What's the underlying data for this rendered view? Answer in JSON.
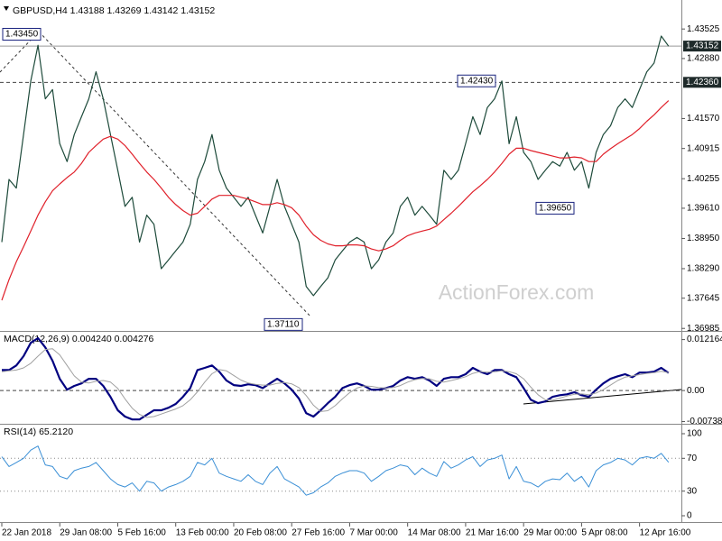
{
  "chart_data": [
    {
      "type": "line",
      "title": "GBPUSD,H4 1.43188 1.43269 1.43142 1.43152",
      "watermark": "ActionForex.com",
      "categories": [
        "22 Jan 2018",
        null,
        null,
        null,
        null,
        null,
        null,
        null,
        "29 Jan 08:00",
        null,
        null,
        null,
        null,
        null,
        null,
        null,
        "5 Feb 16:00",
        null,
        null,
        null,
        null,
        null,
        null,
        null,
        "13 Feb 00:00",
        null,
        null,
        null,
        null,
        null,
        null,
        null,
        "20 Feb 08:00",
        null,
        null,
        null,
        null,
        null,
        null,
        null,
        "27 Feb 16:00",
        null,
        null,
        null,
        null,
        null,
        null,
        null,
        "7 Mar 00:00",
        null,
        null,
        null,
        null,
        null,
        null,
        null,
        "14 Mar 08:00",
        null,
        null,
        null,
        null,
        null,
        null,
        null,
        "21 Mar 16:00",
        null,
        null,
        null,
        null,
        null,
        null,
        null,
        "29 Mar 00:00",
        null,
        null,
        null,
        null,
        null,
        null,
        null,
        "5 Apr 08:00",
        null,
        null,
        null,
        null,
        null,
        null,
        null,
        "12 Apr 16:00",
        null,
        null,
        null,
        null
      ],
      "series": [
        {
          "color": "#1d4a3a",
          "values": [
            1.3887,
            1.4024,
            1.4005,
            1.4122,
            1.4239,
            1.4317,
            1.42,
            1.422,
            1.4102,
            1.4063,
            1.4122,
            1.4161,
            1.42,
            1.4259,
            1.42,
            1.4122,
            1.4044,
            1.3965,
            1.3985,
            1.3887,
            1.3946,
            1.3926,
            1.3829,
            1.3848,
            1.3868,
            1.3887,
            1.3926,
            1.4024,
            1.4063,
            1.4122,
            1.4044,
            1.4005,
            1.3985,
            1.3965,
            1.3985,
            1.3946,
            1.3907,
            1.3965,
            1.4024,
            1.3965,
            1.3926,
            1.3887,
            1.379,
            1.377,
            1.379,
            1.3809,
            1.3848,
            1.3868,
            1.3887,
            1.3897,
            1.3887,
            1.3829,
            1.3848,
            1.3887,
            1.3907,
            1.3965,
            1.3985,
            1.3946,
            1.3965,
            1.3946,
            1.3926,
            1.4044,
            1.4024,
            1.4044,
            1.4102,
            1.4161,
            1.4122,
            1.4181,
            1.42,
            1.4239,
            1.4102,
            1.4161,
            1.4083,
            1.4063,
            1.4024,
            1.4044,
            1.4063,
            1.4053,
            1.4083,
            1.4044,
            1.4063,
            1.4005,
            1.4083,
            1.4122,
            1.4141,
            1.4181,
            1.42,
            1.4181,
            1.422,
            1.4259,
            1.4278,
            1.4337,
            1.4315
          ]
        },
        {
          "color": "#e0202a",
          "values": [
            1.376,
            1.3805,
            1.3844,
            1.3877,
            1.3911,
            1.3946,
            1.3975,
            1.3999,
            1.4014,
            1.4028,
            1.404,
            1.4059,
            1.4083,
            1.4098,
            1.4112,
            1.4118,
            1.4112,
            1.4098,
            1.4079,
            1.4059,
            1.404,
            1.4024,
            1.4005,
            1.3985,
            1.3969,
            1.3956,
            1.3946,
            1.395,
            1.3965,
            1.3981,
            1.3989,
            1.3989,
            1.3989,
            1.3985,
            1.3981,
            1.3975,
            1.3969,
            1.3969,
            1.3973,
            1.3969,
            1.3962,
            1.3946,
            1.3922,
            1.3903,
            1.3891,
            1.3883,
            1.3879,
            1.3879,
            1.3881,
            1.3881,
            1.3879,
            1.3872,
            1.3868,
            1.3872,
            1.3879,
            1.3891,
            1.3901,
            1.3907,
            1.3911,
            1.3915,
            1.3922,
            1.3936,
            1.395,
            1.3965,
            1.3981,
            1.3997,
            1.401,
            1.4024,
            1.404,
            1.4059,
            1.4079,
            1.4092,
            1.4092,
            1.4087,
            1.4083,
            1.4079,
            1.4075,
            1.4071,
            1.4071,
            1.4073,
            1.4071,
            1.4063,
            1.4063,
            1.4079,
            1.4091,
            1.4102,
            1.4112,
            1.4122,
            1.4135,
            1.4151,
            1.4165,
            1.4181,
            1.4196
          ]
        }
      ],
      "ylim": [
        1.3695,
        1.4406
      ],
      "yticks": [
        1.43525,
        {
          "value": 1.4288,
          "label": "1.42880"
        },
        {
          "value": 1.4157,
          "label": "1.41570"
        },
        1.40915,
        1.40255,
        {
          "value": 1.3961,
          "label": "1.39610"
        },
        {
          "value": 1.3895,
          "label": "1.38950"
        },
        {
          "value": 1.3829,
          "label": "1.38290"
        },
        1.37645,
        1.36985
      ],
      "levels": [
        {
          "value": 1.43152,
          "style": "solid",
          "badge": true
        },
        {
          "value": 1.4236,
          "label": "1.42360",
          "style": "dashed",
          "badge": true
        }
      ],
      "annotations": [
        {
          "value": 1.4345,
          "label": "1.43450"
        },
        {
          "value": 1.4243,
          "label": "1.42430"
        },
        {
          "value": 1.3965,
          "label": "1.39650"
        },
        {
          "value": 1.3711,
          "label": "1.37110"
        }
      ]
    },
    {
      "type": "line",
      "title": "MACD(12,26,9) 0.004240 0.004276",
      "series": [
        {
          "color": "#000080",
          "values": [
            0.0049,
            0.0049,
            0.006,
            0.0082,
            0.0114,
            0.0125,
            0.0103,
            0.0071,
            0.0028,
            0.0002,
            0.0011,
            0.0017,
            0.0028,
            0.0028,
            0.0011,
            -0.0015,
            -0.0047,
            -0.0062,
            -0.0069,
            -0.0069,
            -0.0058,
            -0.0047,
            -0.0047,
            -0.0041,
            -0.0032,
            -0.0015,
            0.0006,
            0.0049,
            0.0054,
            0.006,
            0.0045,
            0.0024,
            0.0013,
            0.0011,
            0.0015,
            0.0013,
            0.0006,
            0.0017,
            0.0028,
            0.0017,
            0.0002,
            -0.0019,
            -0.0054,
            -0.0062,
            -0.0047,
            -0.003,
            -0.0015,
            0.0006,
            0.0013,
            0.0017,
            0.0011,
            0.0002,
            0.0002,
            0.0006,
            0.0011,
            0.0024,
            0.0032,
            0.0028,
            0.0032,
            0.0024,
            0.0011,
            0.0028,
            0.0032,
            0.0032,
            0.0039,
            0.0054,
            0.0045,
            0.0039,
            0.0049,
            0.0049,
            0.0039,
            0.0032,
            0.0006,
            -0.0022,
            -0.003,
            -0.0026,
            -0.0015,
            -0.0011,
            -0.0009,
            -0.0004,
            -0.0011,
            -0.0015,
            0.0002,
            0.0017,
            0.0028,
            0.0034,
            0.0039,
            0.0032,
            0.0043,
            0.0043,
            0.0045,
            0.0054,
            0.0042
          ]
        },
        {
          "color": "#a0a0a0",
          "values": [
            0.0045,
            0.0047,
            0.0049,
            0.0054,
            0.0065,
            0.0082,
            0.0098,
            0.01,
            0.0085,
            0.006,
            0.0035,
            0.002,
            0.0018,
            0.0022,
            0.0024,
            0.002,
            0.0005,
            -0.002,
            -0.0042,
            -0.0057,
            -0.0064,
            -0.0062,
            -0.0056,
            -0.005,
            -0.0044,
            -0.0036,
            -0.0022,
            -0.0003,
            0.002,
            0.004,
            0.005,
            0.0047,
            0.0036,
            0.0025,
            0.0018,
            0.0015,
            0.0013,
            0.0013,
            0.0017,
            0.0019,
            0.0016,
            0.0007,
            -0.0012,
            -0.0035,
            -0.005,
            -0.0048,
            -0.0036,
            -0.002,
            -0.0005,
            0.0006,
            0.0011,
            0.001,
            0.0007,
            0.0006,
            0.0007,
            0.0012,
            0.002,
            0.0026,
            0.0029,
            0.0028,
            0.0022,
            0.002,
            0.0024,
            0.0028,
            0.0033,
            0.0041,
            0.0045,
            0.0044,
            0.0045,
            0.0047,
            0.0045,
            0.004,
            0.0028,
            0.0008,
            -0.001,
            -0.0022,
            -0.0023,
            -0.0018,
            -0.0013,
            -0.0009,
            -0.0008,
            -0.001,
            -0.0006,
            0.0002,
            0.0013,
            0.0024,
            0.0032,
            0.0035,
            0.0038,
            0.0041,
            0.0043,
            0.0046,
            0.0043
          ]
        }
      ],
      "ylim": [
        -0.0075,
        0.0138
      ],
      "yticks": [
        0.012164,
        {
          "value": 0,
          "label": "0.00"
        },
        -0.007384
      ],
      "levels": [
        {
          "value": 0,
          "style": "dashed"
        }
      ]
    },
    {
      "type": "line",
      "title": "RSI(14) 65.2120",
      "series": [
        {
          "color": "#3a8fd6",
          "values": [
            72,
            60,
            65,
            70,
            80,
            85,
            62,
            60,
            48,
            45,
            55,
            58,
            60,
            65,
            55,
            45,
            38,
            35,
            40,
            30,
            42,
            40,
            30,
            35,
            38,
            42,
            48,
            65,
            62,
            70,
            52,
            48,
            45,
            42,
            50,
            42,
            38,
            52,
            60,
            45,
            40,
            35,
            25,
            28,
            35,
            40,
            48,
            52,
            55,
            55,
            52,
            42,
            48,
            55,
            58,
            62,
            60,
            50,
            58,
            52,
            48,
            66,
            58,
            62,
            68,
            72,
            60,
            68,
            70,
            74,
            45,
            60,
            42,
            40,
            35,
            42,
            45,
            44,
            52,
            42,
            48,
            35,
            55,
            62,
            65,
            70,
            68,
            62,
            70,
            72,
            70,
            76,
            65.212
          ]
        }
      ],
      "ylim": [
        -6.6,
        109.9
      ],
      "yticks": [
        100,
        70,
        30,
        0
      ],
      "levels": [
        {
          "value": 70,
          "style": "dotted"
        },
        {
          "value": 30,
          "style": "dotted"
        }
      ]
    }
  ]
}
